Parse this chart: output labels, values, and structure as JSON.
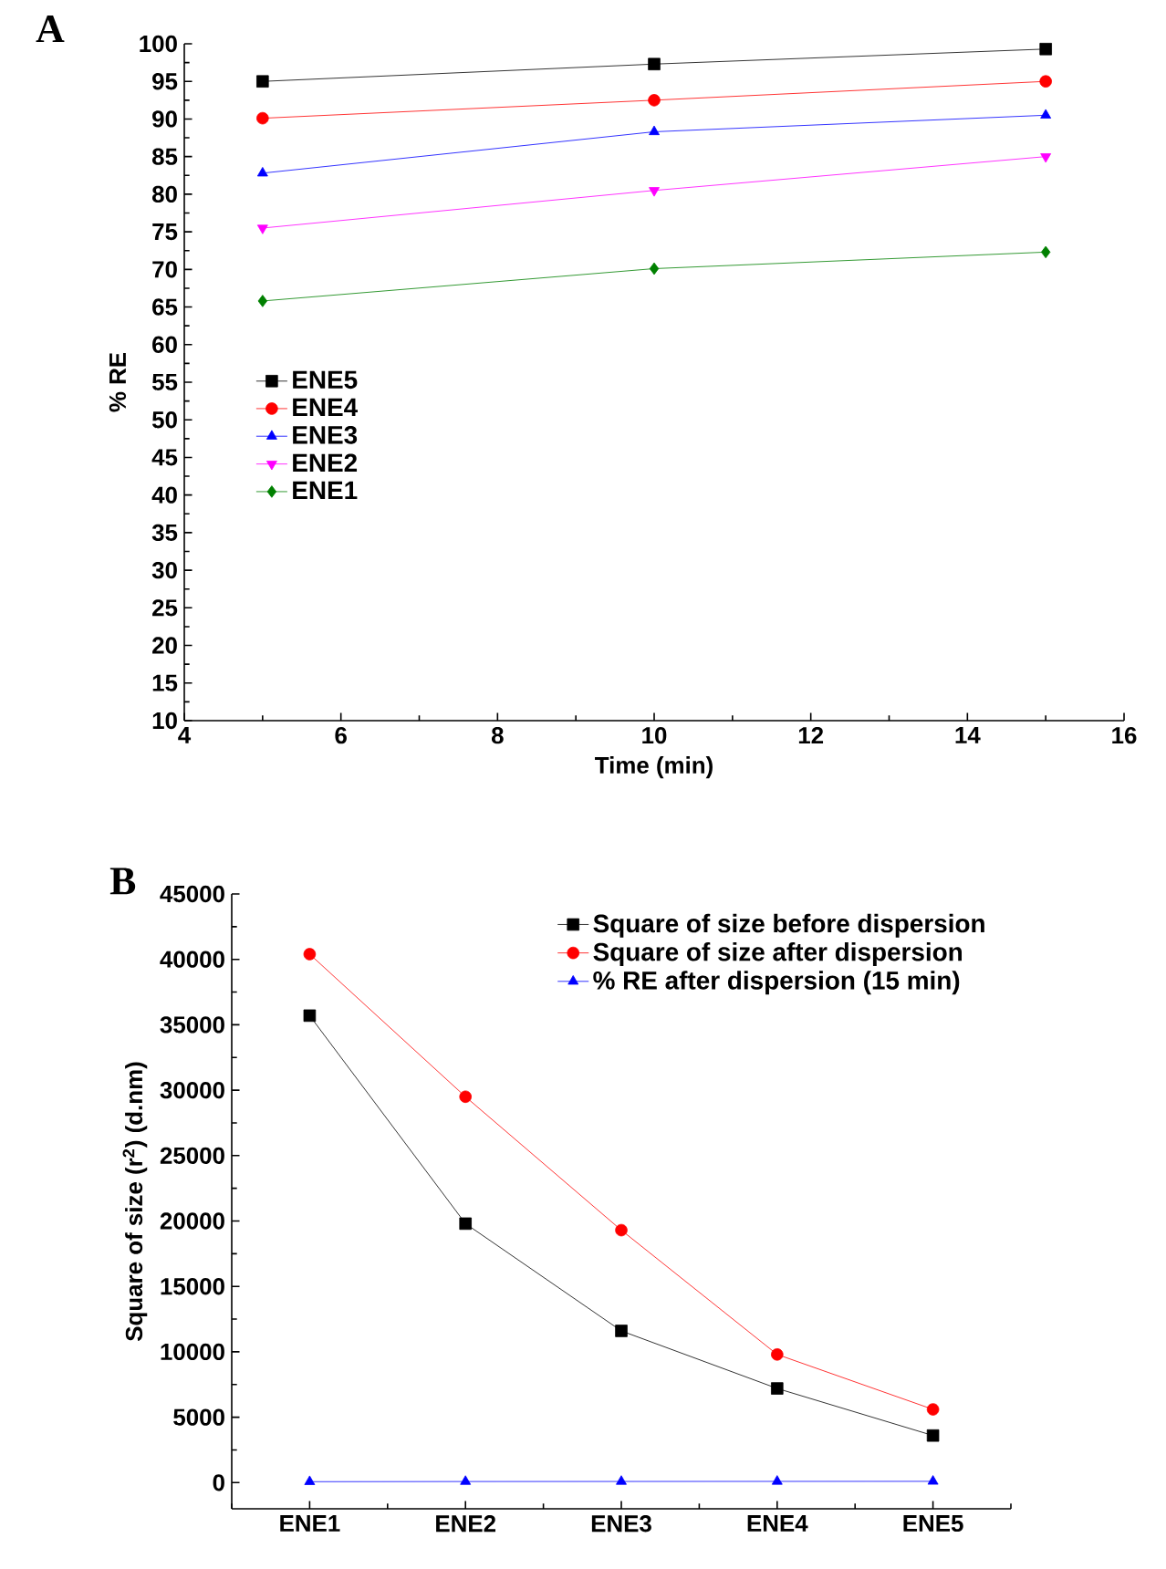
{
  "chart_data": [
    {
      "type": "line",
      "title": "A",
      "xlabel": "Time (min)",
      "ylabel": "% RE",
      "x": [
        5,
        10,
        15
      ],
      "series": [
        {
          "name": "ENE5",
          "color": "#000000",
          "marker": "square",
          "values": [
            95.0,
            97.3,
            99.3
          ]
        },
        {
          "name": "ENE4",
          "color": "#ff0000",
          "marker": "circle",
          "values": [
            90.1,
            92.5,
            95.0
          ]
        },
        {
          "name": "ENE3",
          "color": "#0000ff",
          "marker": "triangle",
          "values": [
            82.8,
            88.3,
            90.5
          ]
        },
        {
          "name": "ENE2",
          "color": "#ff00ff",
          "marker": "triangle_down",
          "values": [
            75.5,
            80.5,
            85.0
          ]
        },
        {
          "name": "ENE1",
          "color": "#008000",
          "marker": "diamond",
          "values": [
            65.8,
            70.1,
            72.3
          ]
        }
      ],
      "xlim": [
        4,
        16
      ],
      "xticks": [
        4,
        6,
        8,
        10,
        12,
        14,
        16
      ],
      "ylim": [
        10,
        100
      ],
      "yticks": [
        10,
        15,
        20,
        25,
        30,
        35,
        40,
        45,
        50,
        55,
        60,
        65,
        70,
        75,
        80,
        85,
        90,
        95,
        100
      ],
      "grid": false,
      "legend": "left",
      "line_style": "solid"
    },
    {
      "type": "line",
      "title": "B",
      "ylabel": "Square of size (r$^{2}$) (d.nm)",
      "categories": [
        "ENE1",
        "ENE2",
        "ENE3",
        "ENE4",
        "ENE5"
      ],
      "series": [
        {
          "name": "Square of size before dispersion",
          "color": "#000000",
          "marker": "square",
          "values": [
            35700,
            19800,
            11600,
            7200,
            3600
          ]
        },
        {
          "name": "Square of size after dispersion",
          "color": "#ff0000",
          "marker": "circle",
          "values": [
            40400,
            29500,
            19300,
            9800,
            5600
          ]
        },
        {
          "name": "% RE after dispersion (15 min)",
          "color": "#0000ff",
          "marker": "triangle",
          "values": [
            72,
            85,
            90,
            95,
            99
          ]
        }
      ],
      "ylim": [
        -2000,
        45000
      ],
      "yticks": [
        0,
        5000,
        10000,
        15000,
        20000,
        25000,
        30000,
        35000,
        40000,
        45000
      ],
      "grid": false,
      "legend": "top right",
      "line_style": "solid"
    }
  ]
}
